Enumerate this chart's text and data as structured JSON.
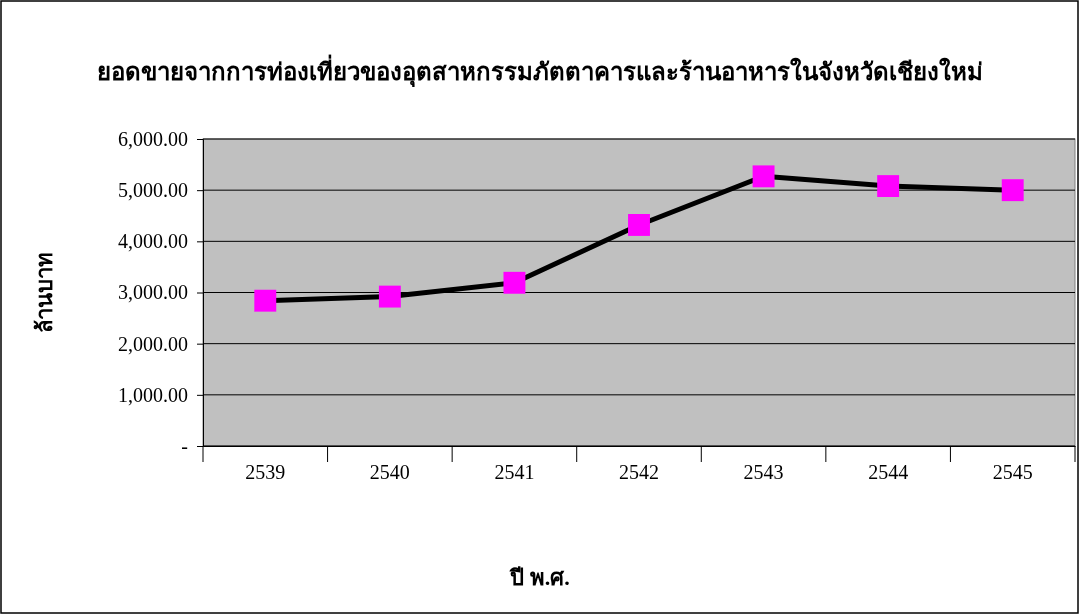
{
  "chart_data": {
    "type": "line",
    "title": "ยอดขายจากการท่องเที่ยวของอุตสาหกรรมภัตตาคารและร้านอาหารในจังหวัดเชียงใหม่",
    "xlabel": "ปี พ.ศ.",
    "ylabel": "ล้านบาท",
    "categories": [
      "2539",
      "2540",
      "2541",
      "2542",
      "2543",
      "2544",
      "2545"
    ],
    "series": [
      {
        "color": "#000000",
        "colors": [
          "#ff00ff",
          "#ff00ff",
          "#ff00ff",
          "#ff00ff",
          "#ff00ff",
          "#ff00ff",
          "#ff00ff"
        ],
        "values": [
          2840,
          2920,
          3190,
          4320,
          5270,
          5080,
          5000
        ]
      }
    ],
    "marker": "square",
    "ylim": [
      0,
      6000
    ],
    "yticks": [
      {
        "value": 0,
        "label": "-"
      },
      {
        "value": 1000,
        "label": "1,000.00"
      },
      {
        "value": 2000,
        "label": "2,000.00"
      },
      {
        "value": 3000,
        "label": "3,000.00"
      },
      {
        "value": 4000,
        "label": "4,000.00"
      },
      {
        "value": 5000,
        "label": "5,000.00"
      },
      {
        "value": 6000,
        "label": "6,000.00"
      }
    ],
    "grid": "y"
  }
}
